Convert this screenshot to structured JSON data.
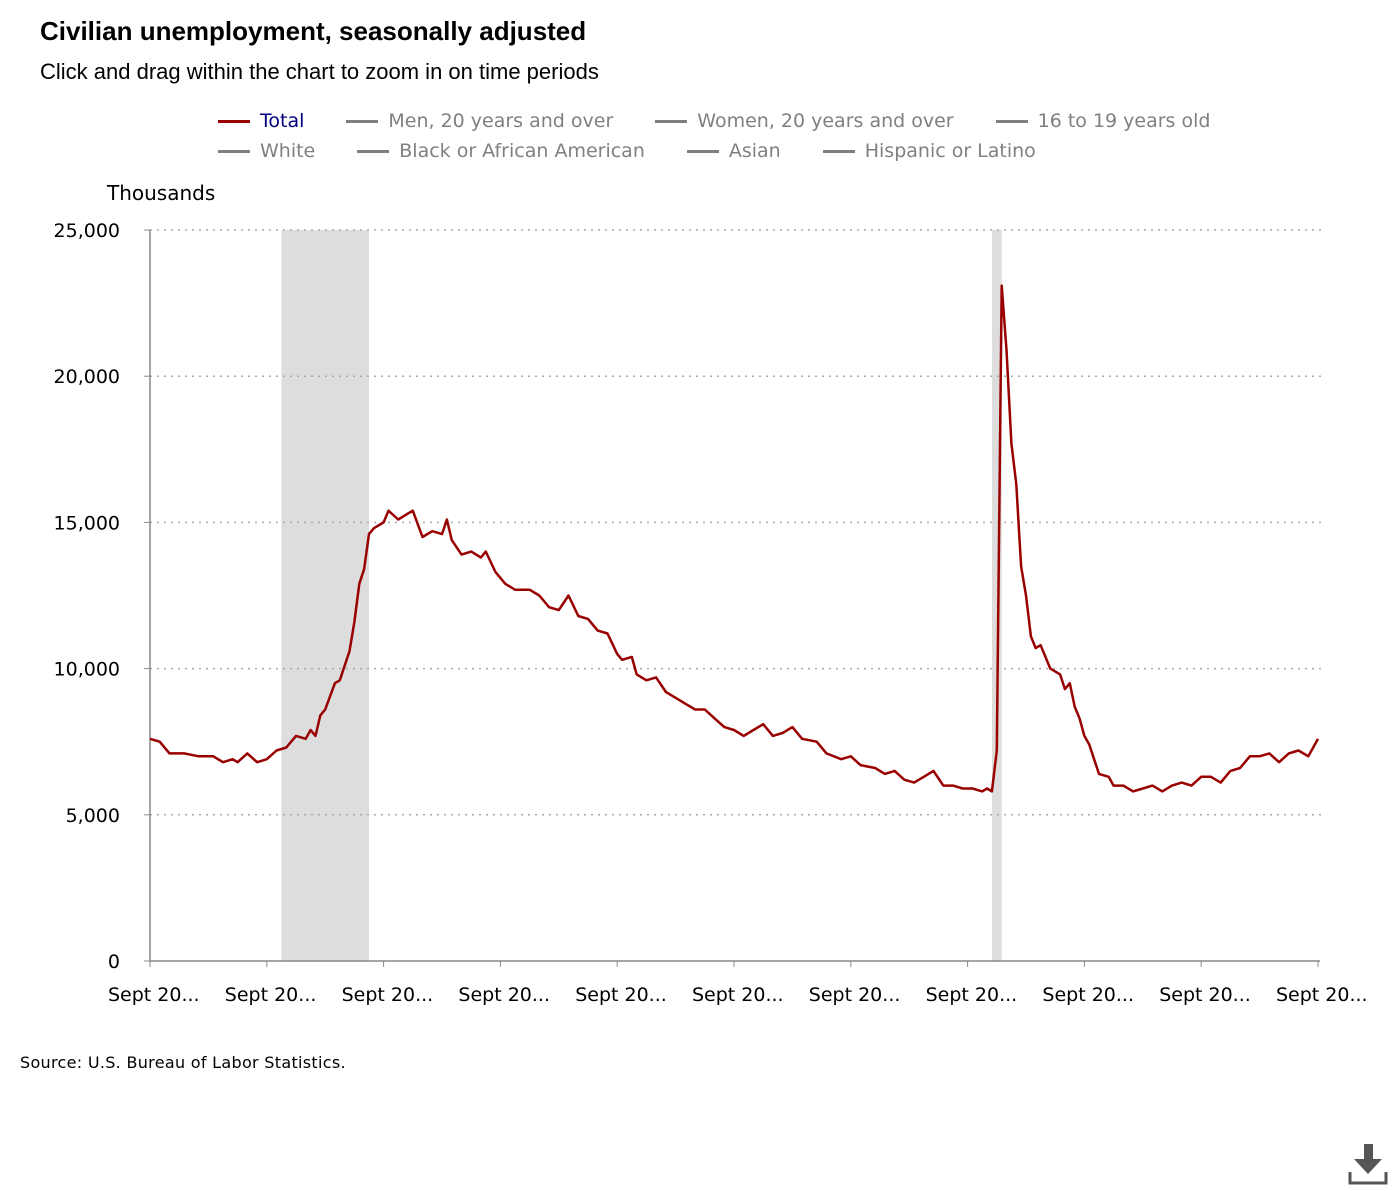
{
  "title": "Civilian unemployment, seasonally adjusted",
  "subtitle": "Click and drag within the chart to zoom in on time periods",
  "source": "Source: U.S. Bureau of Labor Statistics.",
  "download_icon": "download-icon",
  "legend": [
    {
      "label": "Total",
      "active": true
    },
    {
      "label": "Men, 20 years and over",
      "active": false
    },
    {
      "label": "Women, 20 years and over",
      "active": false
    },
    {
      "label": "16 to 19 years old",
      "active": false
    },
    {
      "label": "White",
      "active": false
    },
    {
      "label": "Black or African American",
      "active": false
    },
    {
      "label": "Asian",
      "active": false
    },
    {
      "label": "Hispanic or Latino",
      "active": false
    }
  ],
  "chart_data": {
    "type": "line",
    "ylabel": "Thousands",
    "ylim": [
      0,
      25000
    ],
    "yticks": [
      0,
      5000,
      10000,
      15000,
      20000,
      25000
    ],
    "ytick_labels": [
      "0",
      "5,000",
      "10,000",
      "15,000",
      "20,000",
      "25,000"
    ],
    "xlim": [
      "2005-09",
      "2025-09"
    ],
    "xticks": [
      "2005-09",
      "2007-09",
      "2009-09",
      "2011-09",
      "2013-09",
      "2015-09",
      "2017-09",
      "2019-09",
      "2021-09",
      "2023-09",
      "2025-09"
    ],
    "xtick_labels": [
      "Sept 20...",
      "Sept 20...",
      "Sept 20...",
      "Sept 20...",
      "Sept 20...",
      "Sept 20...",
      "Sept 20...",
      "Sept 20...",
      "Sept 20...",
      "Sept 20...",
      "Sept 20..."
    ],
    "grid": "horizontal dotted",
    "legend_placement": "top",
    "recessions": [
      [
        "2007-12",
        "2009-06"
      ],
      [
        "2020-02",
        "2020-04"
      ]
    ],
    "colors": {
      "line": "#990000",
      "recession": "#dddddd",
      "grid": "#aaaaaa"
    },
    "series": [
      {
        "name": "Total",
        "points": [
          [
            "2005-09",
            7600
          ],
          [
            "2005-11",
            7500
          ],
          [
            "2006-01",
            7100
          ],
          [
            "2006-04",
            7100
          ],
          [
            "2006-07",
            7000
          ],
          [
            "2006-10",
            7000
          ],
          [
            "2006-12",
            6800
          ],
          [
            "2007-02",
            6900
          ],
          [
            "2007-03",
            6800
          ],
          [
            "2007-05",
            7100
          ],
          [
            "2007-07",
            6800
          ],
          [
            "2007-09",
            6900
          ],
          [
            "2007-11",
            7200
          ],
          [
            "2008-01",
            7300
          ],
          [
            "2008-03",
            7700
          ],
          [
            "2008-05",
            7600
          ],
          [
            "2008-06",
            7900
          ],
          [
            "2008-07",
            7700
          ],
          [
            "2008-08",
            8400
          ],
          [
            "2008-09",
            8600
          ],
          [
            "2008-11",
            9500
          ],
          [
            "2008-12",
            9600
          ],
          [
            "2009-02",
            10600
          ],
          [
            "2009-03",
            11600
          ],
          [
            "2009-04",
            12900
          ],
          [
            "2009-05",
            13400
          ],
          [
            "2009-06",
            14600
          ],
          [
            "2009-07",
            14800
          ],
          [
            "2009-09",
            15000
          ],
          [
            "2009-10",
            15400
          ],
          [
            "2009-12",
            15100
          ],
          [
            "2010-02",
            15300
          ],
          [
            "2010-03",
            15400
          ],
          [
            "2010-05",
            14500
          ],
          [
            "2010-07",
            14700
          ],
          [
            "2010-09",
            14600
          ],
          [
            "2010-10",
            15100
          ],
          [
            "2010-11",
            14400
          ],
          [
            "2011-01",
            13900
          ],
          [
            "2011-03",
            14000
          ],
          [
            "2011-05",
            13800
          ],
          [
            "2011-06",
            14000
          ],
          [
            "2011-08",
            13300
          ],
          [
            "2011-10",
            12900
          ],
          [
            "2011-12",
            12700
          ],
          [
            "2012-03",
            12700
          ],
          [
            "2012-05",
            12500
          ],
          [
            "2012-07",
            12100
          ],
          [
            "2012-09",
            12000
          ],
          [
            "2012-11",
            12500
          ],
          [
            "2013-01",
            11800
          ],
          [
            "2013-03",
            11700
          ],
          [
            "2013-05",
            11300
          ],
          [
            "2013-07",
            11200
          ],
          [
            "2013-09",
            10500
          ],
          [
            "2013-10",
            10300
          ],
          [
            "2013-12",
            10400
          ],
          [
            "2014-01",
            9800
          ],
          [
            "2014-03",
            9600
          ],
          [
            "2014-05",
            9700
          ],
          [
            "2014-07",
            9200
          ],
          [
            "2014-09",
            9000
          ],
          [
            "2014-11",
            8800
          ],
          [
            "2015-01",
            8600
          ],
          [
            "2015-03",
            8600
          ],
          [
            "2015-05",
            8300
          ],
          [
            "2015-07",
            8000
          ],
          [
            "2015-09",
            7900
          ],
          [
            "2015-11",
            7700
          ],
          [
            "2016-01",
            7900
          ],
          [
            "2016-03",
            8100
          ],
          [
            "2016-05",
            7700
          ],
          [
            "2016-07",
            7800
          ],
          [
            "2016-09",
            8000
          ],
          [
            "2016-11",
            7600
          ],
          [
            "2017-02",
            7500
          ],
          [
            "2017-04",
            7100
          ],
          [
            "2017-07",
            6900
          ],
          [
            "2017-09",
            7000
          ],
          [
            "2017-11",
            6700
          ],
          [
            "2018-02",
            6600
          ],
          [
            "2018-04",
            6400
          ],
          [
            "2018-06",
            6500
          ],
          [
            "2018-08",
            6200
          ],
          [
            "2018-10",
            6100
          ],
          [
            "2018-12",
            6300
          ],
          [
            "2019-02",
            6500
          ],
          [
            "2019-04",
            6000
          ],
          [
            "2019-06",
            6000
          ],
          [
            "2019-08",
            5900
          ],
          [
            "2019-10",
            5900
          ],
          [
            "2019-12",
            5800
          ],
          [
            "2020-01",
            5900
          ],
          [
            "2020-02",
            5800
          ],
          [
            "2020-03",
            7200
          ],
          [
            "2020-04",
            23100
          ],
          [
            "2020-05",
            20900
          ],
          [
            "2020-06",
            17700
          ],
          [
            "2020-07",
            16300
          ],
          [
            "2020-08",
            13500
          ],
          [
            "2020-09",
            12500
          ],
          [
            "2020-10",
            11100
          ],
          [
            "2020-11",
            10700
          ],
          [
            "2020-12",
            10800
          ],
          [
            "2021-02",
            10000
          ],
          [
            "2021-04",
            9800
          ],
          [
            "2021-05",
            9300
          ],
          [
            "2021-06",
            9500
          ],
          [
            "2021-07",
            8700
          ],
          [
            "2021-08",
            8300
          ],
          [
            "2021-09",
            7700
          ],
          [
            "2021-10",
            7400
          ],
          [
            "2021-11",
            6900
          ],
          [
            "2021-12",
            6400
          ],
          [
            "2022-02",
            6300
          ],
          [
            "2022-03",
            6000
          ],
          [
            "2022-05",
            6000
          ],
          [
            "2022-07",
            5800
          ],
          [
            "2022-09",
            5900
          ],
          [
            "2022-11",
            6000
          ],
          [
            "2023-01",
            5800
          ],
          [
            "2023-03",
            6000
          ],
          [
            "2023-05",
            6100
          ],
          [
            "2023-07",
            6000
          ],
          [
            "2023-09",
            6300
          ],
          [
            "2023-11",
            6300
          ],
          [
            "2024-01",
            6100
          ],
          [
            "2024-03",
            6500
          ],
          [
            "2024-05",
            6600
          ],
          [
            "2024-07",
            7000
          ],
          [
            "2024-09",
            7000
          ],
          [
            "2024-11",
            7100
          ],
          [
            "2025-01",
            6800
          ],
          [
            "2025-03",
            7100
          ],
          [
            "2025-05",
            7200
          ],
          [
            "2025-07",
            7000
          ],
          [
            "2025-09",
            7600
          ]
        ]
      }
    ]
  }
}
